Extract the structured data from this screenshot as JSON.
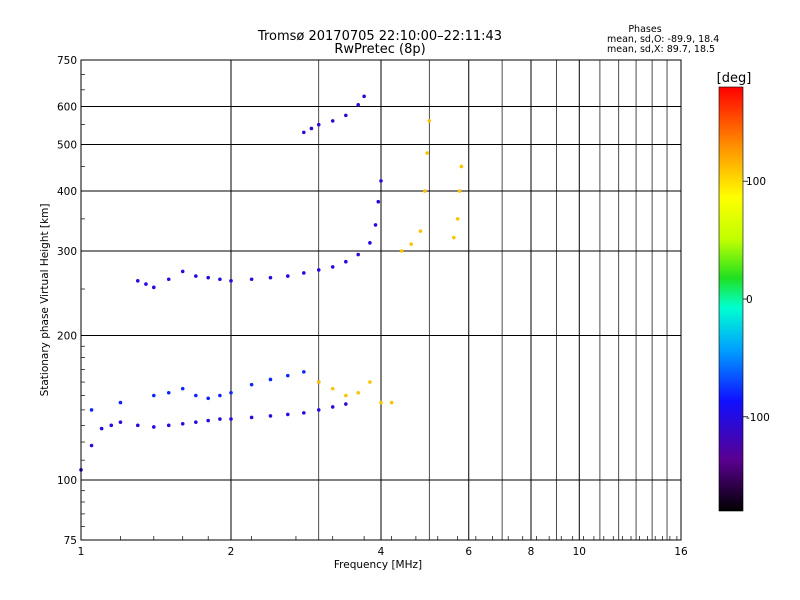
{
  "chart_data": {
    "type": "scatter",
    "title": "Tromsø 20170705 22:10:00–22:11:43",
    "subtitle": "RwPretec (8p)",
    "xlabel": "Frequency [MHz]",
    "ylabel": "Stationary phase Virtual Height [km]",
    "x_scale": "log",
    "y_scale": "log",
    "xlim": [
      1,
      16
    ],
    "ylim": [
      75,
      750
    ],
    "x_ticks": [
      "1",
      "2",
      "4",
      "6",
      "8",
      "10",
      "16"
    ],
    "y_ticks": [
      "75",
      "100",
      "200",
      "300",
      "400",
      "500",
      "600",
      "750"
    ],
    "grid": true,
    "phases_legend": {
      "title": "Phases",
      "line_o": "mean, sd,O: -89.9, 18.4",
      "line_x": "mean, sd,X: 89.7, 18.5"
    },
    "colorbar": {
      "label": "[deg]",
      "ticks": [
        "100",
        "0",
        "-100"
      ],
      "range": [
        -180,
        180
      ]
    },
    "series": [
      {
        "phase": -100,
        "points": [
          [
            1.0,
            105
          ],
          [
            1.05,
            118
          ],
          [
            1.1,
            128
          ],
          [
            1.15,
            130
          ],
          [
            1.2,
            132
          ],
          [
            1.3,
            130
          ],
          [
            1.4,
            129
          ],
          [
            1.5,
            130
          ],
          [
            1.6,
            131
          ],
          [
            1.7,
            132
          ],
          [
            1.8,
            133
          ],
          [
            1.9,
            134
          ],
          [
            2.0,
            134
          ],
          [
            2.2,
            135
          ],
          [
            2.4,
            136
          ],
          [
            2.6,
            137
          ],
          [
            2.8,
            138
          ],
          [
            3.0,
            140
          ],
          [
            3.2,
            142
          ],
          [
            3.4,
            144
          ]
        ]
      },
      {
        "phase": -100,
        "points": [
          [
            1.3,
            260
          ],
          [
            1.35,
            256
          ],
          [
            1.4,
            252
          ],
          [
            1.5,
            262
          ],
          [
            1.6,
            272
          ],
          [
            1.7,
            266
          ],
          [
            1.8,
            264
          ],
          [
            1.9,
            262
          ],
          [
            2.0,
            260
          ],
          [
            2.2,
            262
          ],
          [
            2.4,
            264
          ],
          [
            2.6,
            266
          ],
          [
            2.8,
            270
          ],
          [
            3.0,
            274
          ],
          [
            3.2,
            278
          ],
          [
            3.4,
            285
          ],
          [
            3.6,
            295
          ],
          [
            3.8,
            312
          ],
          [
            3.9,
            340
          ],
          [
            3.95,
            380
          ],
          [
            4.0,
            420
          ]
        ]
      },
      {
        "phase": -110,
        "points": [
          [
            2.8,
            530
          ],
          [
            2.9,
            540
          ],
          [
            3.0,
            550
          ],
          [
            3.2,
            560
          ],
          [
            3.4,
            575
          ],
          [
            3.6,
            605
          ],
          [
            3.7,
            630
          ]
        ]
      },
      {
        "phase": -80,
        "points": [
          [
            1.05,
            140
          ],
          [
            1.2,
            145
          ],
          [
            1.4,
            150
          ],
          [
            1.5,
            152
          ],
          [
            1.6,
            155
          ],
          [
            1.7,
            150
          ],
          [
            1.8,
            148
          ],
          [
            1.9,
            150
          ],
          [
            2.0,
            152
          ],
          [
            2.2,
            158
          ],
          [
            2.4,
            162
          ],
          [
            2.6,
            165
          ],
          [
            2.8,
            168
          ],
          [
            3.0,
            160
          ]
        ]
      },
      {
        "phase": 110,
        "points": [
          [
            3.0,
            160
          ],
          [
            3.2,
            155
          ],
          [
            3.4,
            150
          ],
          [
            3.6,
            152
          ],
          [
            3.8,
            160
          ],
          [
            4.0,
            145
          ],
          [
            4.2,
            145
          ],
          [
            4.4,
            300
          ],
          [
            4.6,
            310
          ],
          [
            4.8,
            330
          ],
          [
            4.9,
            400
          ],
          [
            4.95,
            480
          ],
          [
            5.0,
            560
          ],
          [
            5.6,
            320
          ],
          [
            5.7,
            350
          ],
          [
            5.75,
            400
          ],
          [
            5.8,
            450
          ]
        ]
      }
    ]
  }
}
